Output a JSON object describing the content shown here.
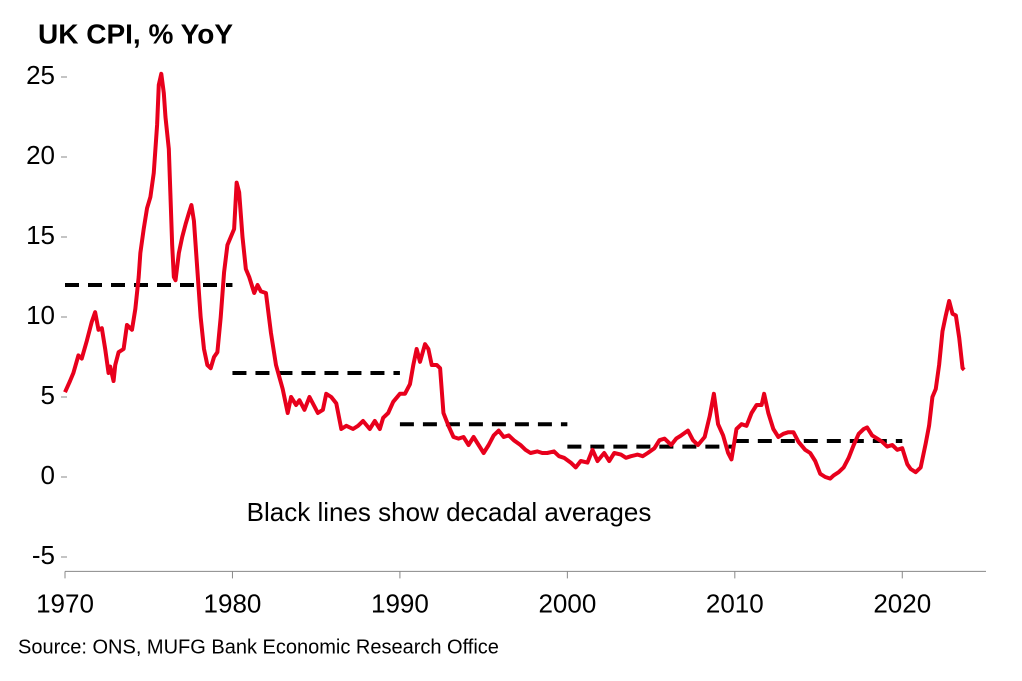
{
  "chart_data": {
    "type": "line",
    "title": "UK CPI, % YoY",
    "annotation": "Black lines show decadal averages",
    "source": "Source: ONS, MUFG Bank Economic Research Office",
    "x": [
      1970.0,
      1970.3,
      1970.5,
      1970.8,
      1971.0,
      1971.3,
      1971.6,
      1971.8,
      1972.0,
      1972.2,
      1972.4,
      1972.6,
      1972.7,
      1972.9,
      1973.0,
      1973.2,
      1973.5,
      1973.7,
      1974.0,
      1974.2,
      1974.4,
      1974.5,
      1974.7,
      1974.9,
      1975.1,
      1975.3,
      1975.5,
      1975.6,
      1975.75,
      1975.9,
      1976.0,
      1976.2,
      1976.3,
      1976.4,
      1976.5,
      1976.6,
      1976.8,
      1977.0,
      1977.2,
      1977.4,
      1977.55,
      1977.7,
      1977.9,
      1978.1,
      1978.3,
      1978.5,
      1978.7,
      1978.9,
      1979.1,
      1979.3,
      1979.5,
      1979.7,
      1979.9,
      1980.1,
      1980.25,
      1980.4,
      1980.6,
      1980.8,
      1981.0,
      1981.3,
      1981.5,
      1981.7,
      1982.0,
      1982.3,
      1982.6,
      1983.0,
      1983.3,
      1983.5,
      1983.8,
      1984.0,
      1984.3,
      1984.6,
      1984.9,
      1985.1,
      1985.4,
      1985.6,
      1985.9,
      1986.2,
      1986.5,
      1986.8,
      1987.2,
      1987.5,
      1987.8,
      1988.2,
      1988.5,
      1988.8,
      1989.0,
      1989.3,
      1989.6,
      1990.0,
      1990.3,
      1990.6,
      1990.8,
      1991.0,
      1991.2,
      1991.5,
      1991.7,
      1991.9,
      1992.2,
      1992.4,
      1992.6,
      1992.9,
      1993.2,
      1993.5,
      1993.8,
      1994.1,
      1994.4,
      1994.7,
      1995.0,
      1995.3,
      1995.6,
      1995.9,
      1996.2,
      1996.5,
      1996.8,
      1997.2,
      1997.5,
      1997.8,
      1998.2,
      1998.5,
      1998.8,
      1999.2,
      1999.5,
      1999.8,
      2000.2,
      2000.5,
      2000.8,
      2001.2,
      2001.5,
      2001.8,
      2002.2,
      2002.5,
      2002.8,
      2003.2,
      2003.5,
      2003.8,
      2004.2,
      2004.5,
      2004.8,
      2005.2,
      2005.5,
      2005.8,
      2006.2,
      2006.5,
      2006.8,
      2007.2,
      2007.5,
      2007.8,
      2008.2,
      2008.5,
      2008.75,
      2009.0,
      2009.3,
      2009.6,
      2009.8,
      2010.1,
      2010.4,
      2010.7,
      2011.0,
      2011.3,
      2011.6,
      2011.75,
      2012.0,
      2012.3,
      2012.6,
      2012.9,
      2013.2,
      2013.5,
      2013.8,
      2014.2,
      2014.5,
      2014.8,
      2015.1,
      2015.4,
      2015.7,
      2015.9,
      2016.2,
      2016.5,
      2016.8,
      2017.1,
      2017.4,
      2017.7,
      2017.9,
      2018.2,
      2018.5,
      2018.8,
      2019.1,
      2019.4,
      2019.7,
      2020.0,
      2020.3,
      2020.5,
      2020.8,
      2021.1,
      2021.4,
      2021.6,
      2021.8,
      2022.0,
      2022.2,
      2022.4,
      2022.6,
      2022.8,
      2023.0,
      2023.2,
      2023.4,
      2023.6,
      2023.7
    ],
    "series": [
      {
        "color": "#e8001c",
        "values": [
          5.3,
          6.0,
          6.5,
          7.6,
          7.4,
          8.5,
          9.7,
          10.3,
          9.2,
          9.3,
          8.0,
          6.5,
          6.9,
          6.0,
          7.0,
          7.8,
          8.0,
          9.5,
          9.2,
          10.5,
          12.5,
          14.0,
          15.5,
          16.8,
          17.5,
          19.0,
          22.0,
          24.5,
          25.2,
          24.0,
          22.5,
          20.5,
          17.5,
          14.5,
          12.5,
          12.3,
          14.0,
          15.0,
          15.8,
          16.5,
          17.0,
          16.0,
          13.0,
          10.0,
          8.0,
          7.0,
          6.8,
          7.5,
          7.8,
          10.0,
          12.8,
          14.5,
          15.0,
          15.5,
          18.4,
          17.8,
          15.0,
          13.0,
          12.5,
          11.5,
          12.0,
          11.6,
          11.5,
          9.0,
          7.0,
          5.5,
          4.0,
          5.0,
          4.5,
          4.8,
          4.2,
          5.0,
          4.4,
          4.0,
          4.2,
          5.2,
          5.0,
          4.6,
          3.0,
          3.2,
          3.0,
          3.2,
          3.5,
          3.0,
          3.5,
          3.0,
          3.7,
          4.0,
          4.7,
          5.2,
          5.2,
          5.8,
          7.0,
          8.0,
          7.2,
          8.3,
          8.0,
          7.0,
          7.0,
          6.8,
          4.0,
          3.2,
          2.5,
          2.4,
          2.5,
          2.0,
          2.5,
          2.0,
          1.5,
          2.0,
          2.6,
          2.9,
          2.5,
          2.6,
          2.3,
          2.0,
          1.7,
          1.5,
          1.6,
          1.5,
          1.5,
          1.6,
          1.3,
          1.2,
          0.9,
          0.6,
          1.0,
          0.9,
          1.7,
          1.0,
          1.5,
          1.0,
          1.5,
          1.4,
          1.2,
          1.3,
          1.4,
          1.3,
          1.5,
          1.8,
          2.3,
          2.4,
          2.0,
          2.4,
          2.6,
          2.9,
          2.3,
          2.0,
          2.5,
          3.8,
          5.2,
          3.3,
          2.6,
          1.5,
          1.1,
          3.0,
          3.3,
          3.2,
          4.0,
          4.5,
          4.5,
          5.2,
          4.0,
          3.0,
          2.5,
          2.7,
          2.8,
          2.8,
          2.2,
          1.7,
          1.5,
          1.0,
          0.2,
          0.0,
          -0.1,
          0.1,
          0.3,
          0.6,
          1.2,
          2.0,
          2.7,
          3.0,
          3.1,
          2.6,
          2.4,
          2.2,
          1.9,
          2.0,
          1.7,
          1.8,
          0.8,
          0.5,
          0.3,
          0.6,
          2.1,
          3.2,
          5.0,
          5.5,
          7.0,
          9.1,
          10.1,
          11.0,
          10.2,
          10.1,
          8.7,
          6.8,
          6.7
        ]
      }
    ],
    "averages": [
      {
        "x": [
          1970,
          1980
        ],
        "value": 12.0
      },
      {
        "x": [
          1980,
          1990
        ],
        "value": 6.5
      },
      {
        "x": [
          1990,
          2000
        ],
        "value": 3.3
      },
      {
        "x": [
          2000,
          2010
        ],
        "value": 1.9
      },
      {
        "x": [
          2010,
          2020
        ],
        "value": 2.25
      }
    ],
    "averages_color": "#000000",
    "xlim": [
      1970,
      2025
    ],
    "ylim": [
      -5.9,
      25
    ],
    "xticks": [
      1970,
      1980,
      1990,
      2000,
      2010,
      2020
    ],
    "yticks": [
      -5,
      0,
      5,
      10,
      15,
      20,
      25
    ]
  }
}
